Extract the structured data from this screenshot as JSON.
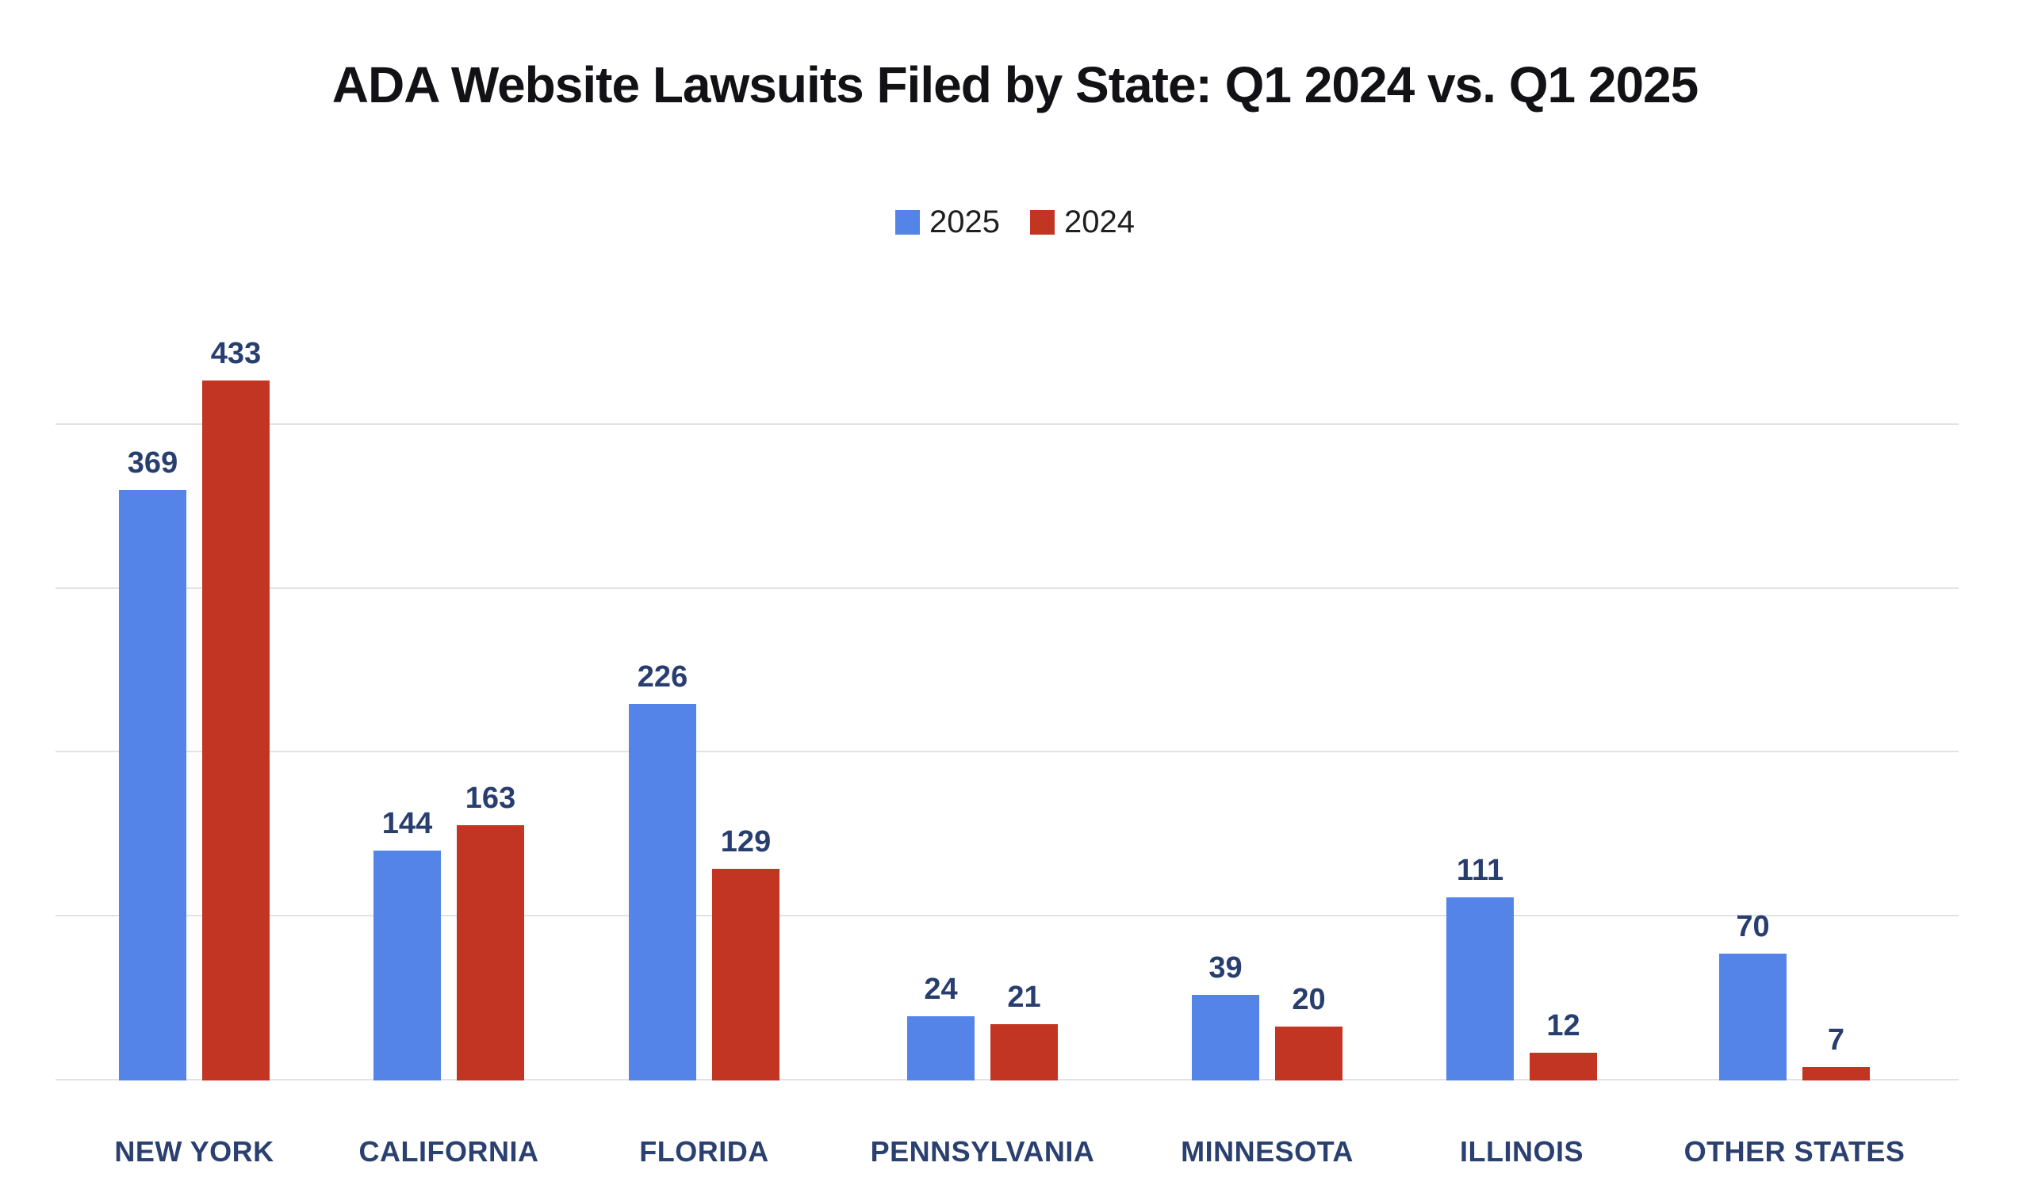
{
  "chart_data": {
    "type": "bar",
    "title": "ADA Website Lawsuits Filed by State: Q1 2024 vs. Q1 2025",
    "categories": [
      "NEW YORK",
      "CALIFORNIA",
      "FLORIDA",
      "PENNSYLVANIA",
      "MINNESOTA",
      "ILLINOIS",
      "OTHER STATES"
    ],
    "series": [
      {
        "name": "2025",
        "color": "#5484E8",
        "values": [
          369,
          144,
          226,
          24,
          39,
          111,
          70
        ]
      },
      {
        "name": "2024",
        "color": "#C23522",
        "values": [
          433,
          163,
          129,
          21,
          20,
          12,
          7
        ]
      }
    ],
    "ylim": [
      0,
      440
    ],
    "gridline_values": [
      0,
      100,
      200,
      300,
      400
    ],
    "grid": "horizontal",
    "y_tick_labels_shown": false,
    "value_labels_shown": true,
    "legend_position": "top-center"
  },
  "styles": {
    "series_2025_color": "#5484E8",
    "series_2024_color": "#C23522",
    "value_label_color": "#273E6F",
    "axis_label_color": "#2A4070",
    "title_color": "#121216",
    "legend_text_color": "#1F1F1F",
    "gridline_color": "#E2E2E2",
    "background_color": "#FFFFFF"
  }
}
